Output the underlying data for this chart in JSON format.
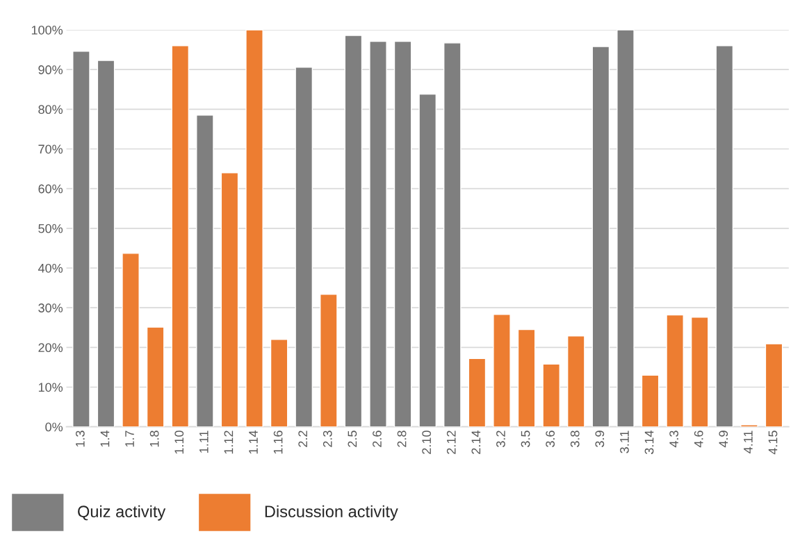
{
  "chart_data": {
    "type": "bar",
    "categories": [
      "1.3",
      "1.4",
      "1.7",
      "1.8",
      "1.10",
      "1.11",
      "1.12",
      "1.14",
      "1.16",
      "2.2",
      "2.3",
      "2.5",
      "2.6",
      "2.8",
      "2.10",
      "2.12",
      "2.14",
      "3.2",
      "3.5",
      "3.6",
      "3.8",
      "3.9",
      "3.11",
      "3.14",
      "4.3",
      "4.6",
      "4.9",
      "4.11",
      "4.15"
    ],
    "series": [
      {
        "name": "Quiz activity",
        "color": "#7f7f7f",
        "values": [
          94.6,
          92.3,
          null,
          null,
          null,
          78.5,
          null,
          null,
          null,
          90.6,
          null,
          98.6,
          97.1,
          97.1,
          83.8,
          96.7,
          null,
          null,
          null,
          null,
          null,
          95.8,
          100,
          null,
          null,
          null,
          96.0,
          null,
          null
        ]
      },
      {
        "name": "Discussion activity",
        "color": "#ed7d31",
        "values": [
          null,
          null,
          43.7,
          25.1,
          96.0,
          null,
          64.0,
          100,
          22.0,
          null,
          33.4,
          null,
          null,
          null,
          null,
          null,
          17.2,
          28.3,
          24.5,
          15.8,
          22.9,
          null,
          null,
          13.0,
          28.2,
          27.6,
          null,
          0.5,
          20.9
        ]
      }
    ],
    "ylim": [
      0,
      100
    ],
    "yticks": [
      {
        "value": 0,
        "label": "0%"
      },
      {
        "value": 10,
        "label": "10%"
      },
      {
        "value": 20,
        "label": "20%"
      },
      {
        "value": 30,
        "label": "30%"
      },
      {
        "value": 40,
        "label": "40%"
      },
      {
        "value": 50,
        "label": "50%"
      },
      {
        "value": 60,
        "label": "60%"
      },
      {
        "value": 70,
        "label": "70%"
      },
      {
        "value": 80,
        "label": "80%"
      },
      {
        "value": 90,
        "label": "90%"
      },
      {
        "value": 100,
        "label": "100%"
      }
    ],
    "grid": "y",
    "legend": "bottom left"
  }
}
